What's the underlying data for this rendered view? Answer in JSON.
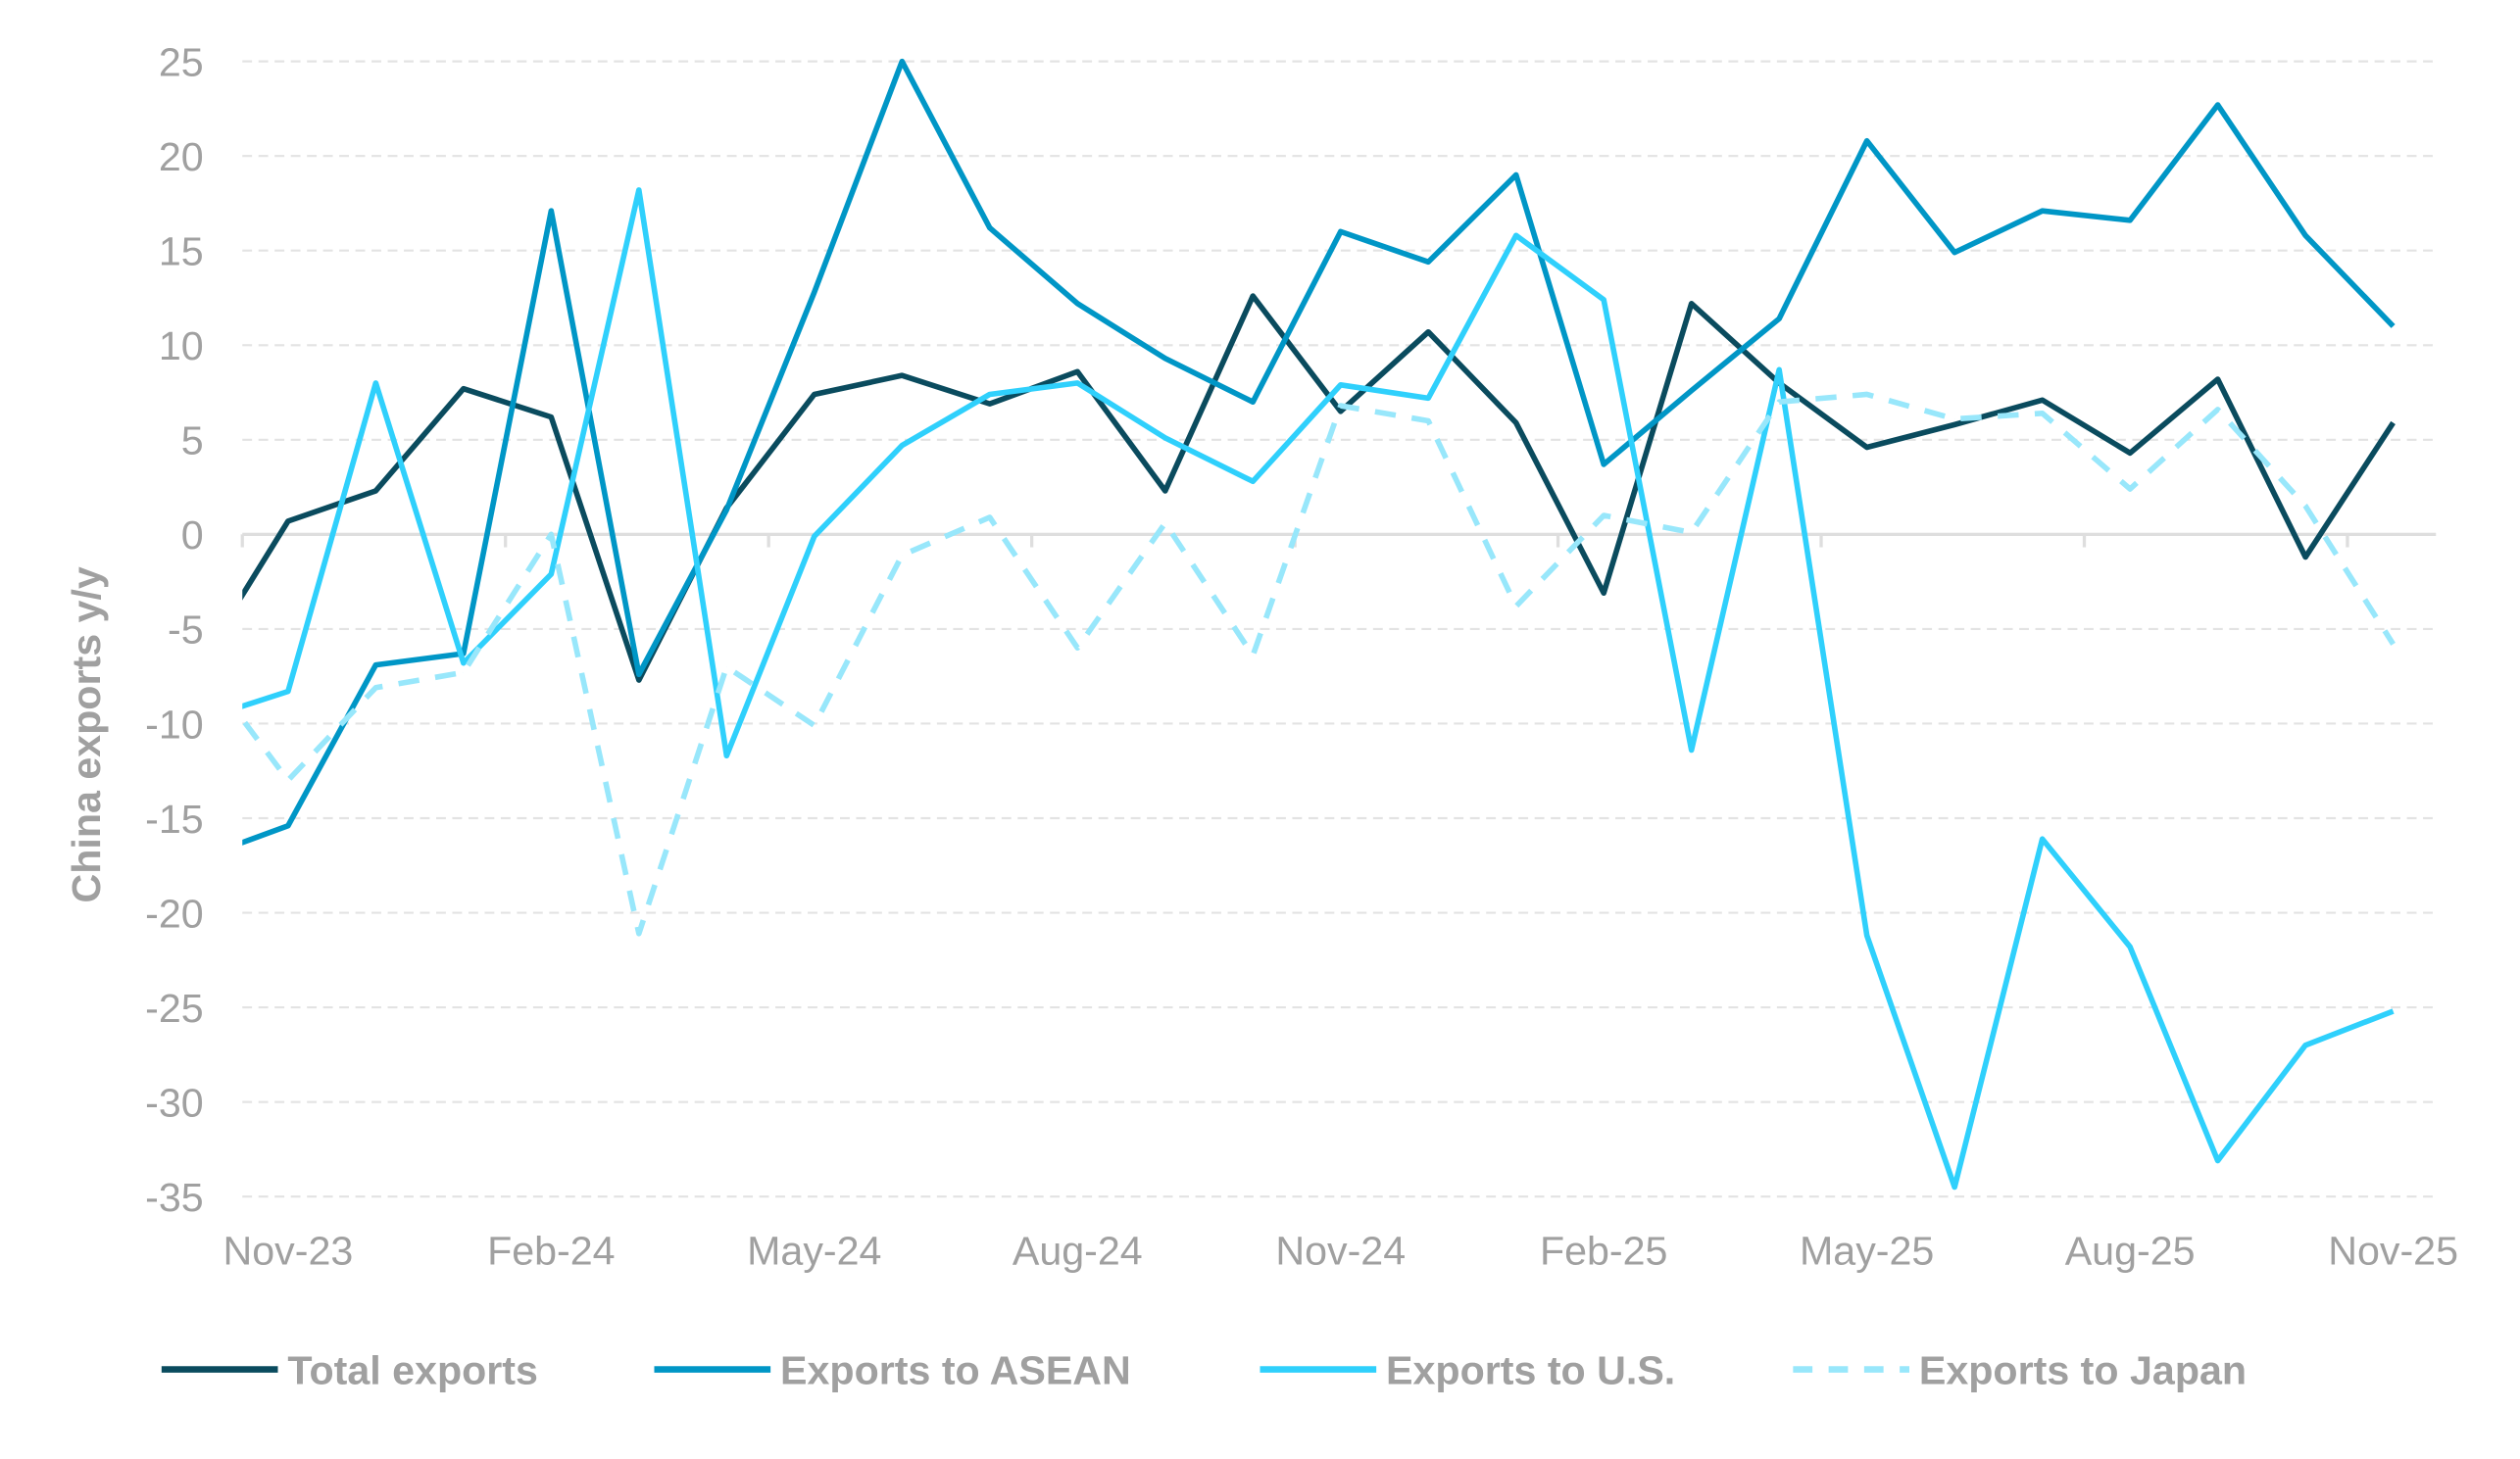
{
  "chart_data": {
    "type": "line",
    "title": "",
    "xlabel": "",
    "ylabel": "China exports y/y",
    "ylim": [
      -35,
      25
    ],
    "yticks": [
      25,
      20,
      15,
      10,
      5,
      0,
      -5,
      -10,
      -15,
      -20,
      -25,
      -30,
      -35
    ],
    "grid": true,
    "legend": "bottom",
    "x": [
      "Oct-23",
      "Nov-23",
      "Dec-23",
      "Jan-24",
      "Feb-24",
      "Mar-24",
      "Apr-24",
      "May-24",
      "Jun-24",
      "Jul-24",
      "Aug-24",
      "Sep-24",
      "Oct-24",
      "Nov-24",
      "Dec-24",
      "Jan-25",
      "Feb-25",
      "Mar-25",
      "Apr-25",
      "May-25",
      "Jun-25",
      "Jul-25",
      "Aug-25",
      "Sep-25",
      "Oct-25",
      "Nov-25"
    ],
    "xtick_labels": [
      "Nov-23",
      "Feb-24",
      "May-24",
      "Aug-24",
      "Nov-24",
      "Feb-25",
      "May-25",
      "Aug-25",
      "Nov-25"
    ],
    "series": [
      {
        "name": "Total exports",
        "color": "#0a4b5e",
        "dash": false,
        "values": [
          -6.8,
          0.7,
          2.3,
          7.7,
          6.2,
          -7.7,
          1.4,
          7.4,
          8.4,
          6.9,
          8.6,
          2.3,
          12.6,
          6.5,
          10.7,
          5.9,
          -3.1,
          12.2,
          8.0,
          4.6,
          5.8,
          7.1,
          4.3,
          8.2,
          -1.2,
          5.9
        ]
      },
      {
        "name": "Exports to ASEAN",
        "color": "#0096c6",
        "dash": false,
        "values": [
          -17.1,
          -15.4,
          -6.9,
          -6.3,
          17.1,
          -7.4,
          1.3,
          12.8,
          25.0,
          16.2,
          12.2,
          9.3,
          7.0,
          16.0,
          14.4,
          19.0,
          3.7,
          7.6,
          11.4,
          20.8,
          14.9,
          17.1,
          16.6,
          22.7,
          15.8,
          11.0
        ]
      },
      {
        "name": "Exports to U.S.",
        "color": "#2fd0fc",
        "dash": false,
        "values": [
          -9.8,
          -8.3,
          8.0,
          -6.8,
          -2.1,
          18.2,
          -11.7,
          -0.1,
          4.7,
          7.4,
          8.0,
          5.1,
          2.8,
          7.9,
          7.2,
          15.8,
          12.4,
          -11.4,
          8.7,
          -21.2,
          -34.5,
          -16.1,
          -21.8,
          -33.1,
          -27.0,
          -25.2
        ]
      },
      {
        "name": "Exports to Japan",
        "color": "#98e7fb",
        "dash": true,
        "values": [
          -6.8,
          -13.0,
          -8.1,
          -7.3,
          0.0,
          -21.1,
          -7.0,
          -10.1,
          -1.1,
          0.9,
          -6.0,
          0.6,
          -6.4,
          6.8,
          6.0,
          -3.8,
          1.0,
          0.1,
          7.0,
          7.4,
          6.1,
          6.4,
          2.4,
          6.6,
          1.5,
          -5.8
        ]
      }
    ]
  },
  "colors": {
    "axis_text": "#a0a0a0",
    "grid": "#e3e3e3"
  }
}
